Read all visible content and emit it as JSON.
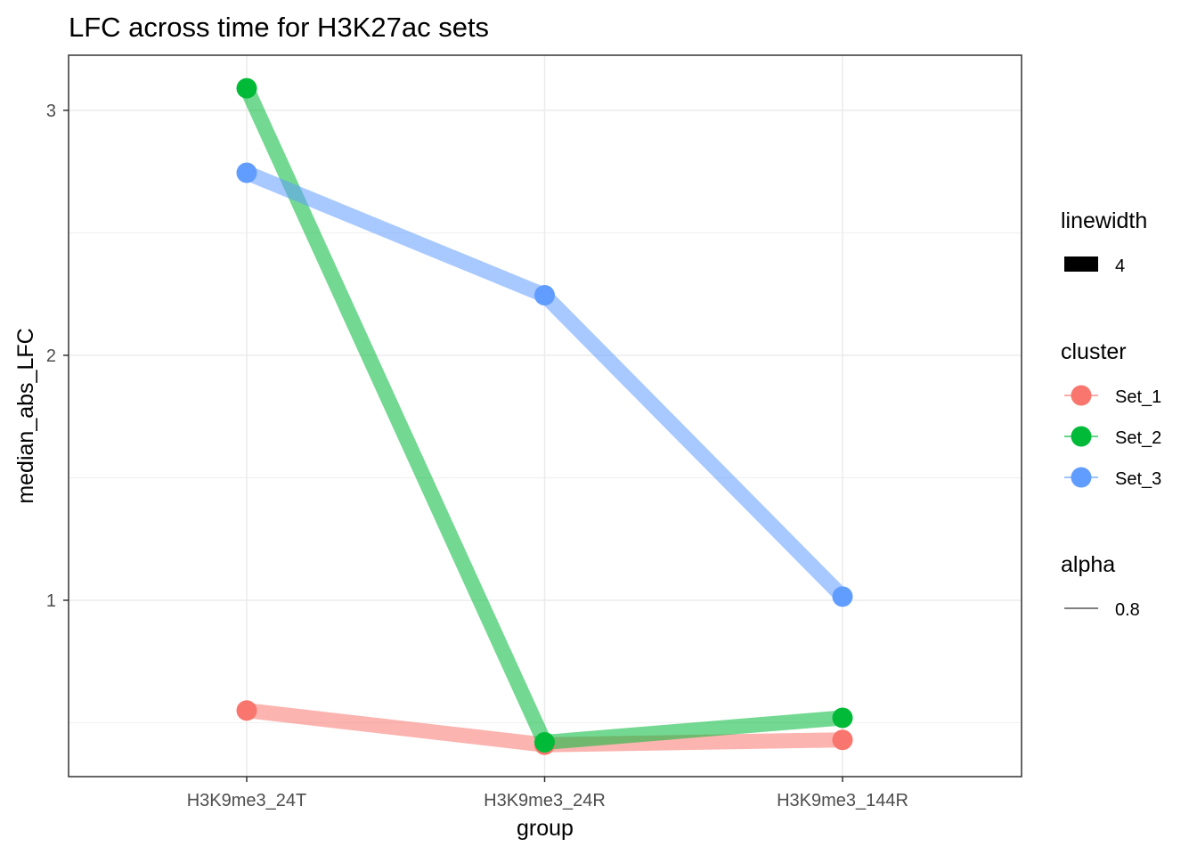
{
  "chart_data": {
    "type": "line",
    "title": "LFC across time for H3K27ac sets",
    "xlabel": "group",
    "ylabel": "median_abs_LFC",
    "categories": [
      "H3K9me3_24T",
      "H3K9me3_24R",
      "H3K9me3_144R"
    ],
    "ylim": [
      0.28,
      3.225
    ],
    "yticks": [
      1,
      2,
      3
    ],
    "yticklabels": [
      "1",
      "2",
      "3"
    ],
    "grid": true,
    "series": [
      {
        "name": "Set_1",
        "color": "#F8766D",
        "values": [
          0.55,
          0.41,
          0.43
        ]
      },
      {
        "name": "Set_2",
        "color": "#00BA38",
        "values": [
          3.09,
          0.42,
          0.52
        ]
      },
      {
        "name": "Set_3",
        "color": "#619CFF",
        "values": [
          2.745,
          2.245,
          1.015
        ]
      }
    ],
    "legend": {
      "placement": "right",
      "linewidth": {
        "title": "linewidth",
        "label": "4"
      },
      "cluster": {
        "title": "cluster",
        "labels": [
          "Set_1",
          "Set_2",
          "Set_3"
        ]
      },
      "alpha": {
        "title": "alpha",
        "label": "0.8"
      }
    }
  }
}
